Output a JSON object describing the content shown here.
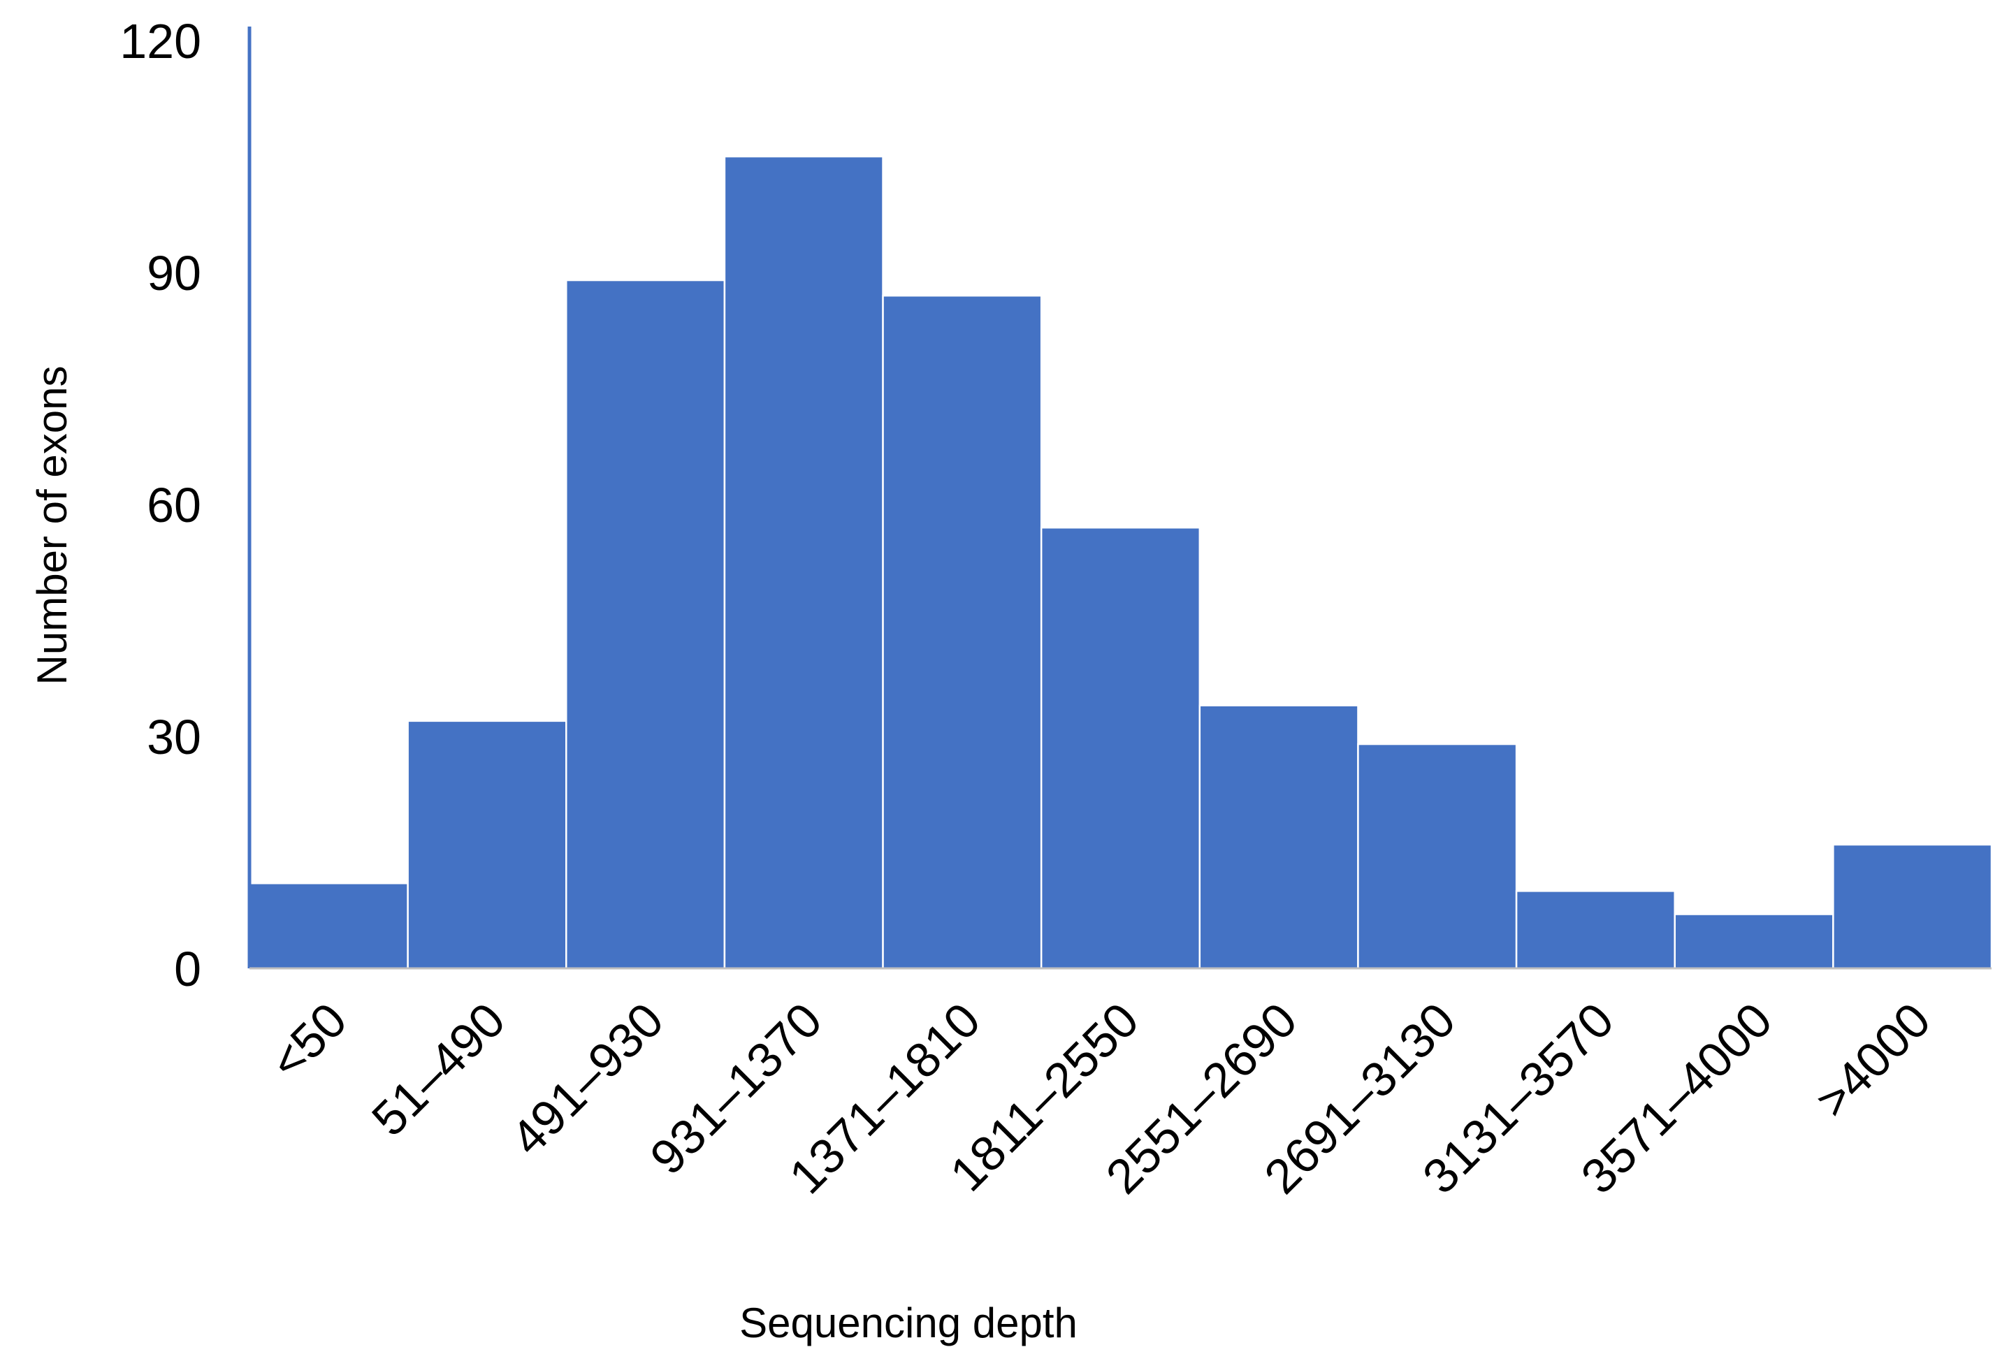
{
  "chart_data": {
    "type": "bar",
    "title": "",
    "xlabel": "Sequencing depth",
    "ylabel": "Number of exons",
    "categories": [
      "<50",
      "51–490",
      "491–930",
      "931–1370",
      "1371–1810",
      "1811–2550",
      "2551–2690",
      "2691–3130",
      "3131–3570",
      "3571–4000",
      ">4000"
    ],
    "values": [
      11,
      32,
      89,
      105,
      87,
      57,
      34,
      29,
      10,
      7,
      16
    ],
    "ylim": [
      0,
      120
    ],
    "yticks": [
      0,
      30,
      60,
      90,
      120
    ],
    "ytick_labels": [
      "0",
      "30",
      "60",
      "90",
      "120"
    ],
    "grid": false,
    "legend": "none",
    "colors": {
      "bar": "#4472c4",
      "bar_edge": "#ffffff",
      "axis": "#4472c4",
      "text": "#000000"
    }
  }
}
